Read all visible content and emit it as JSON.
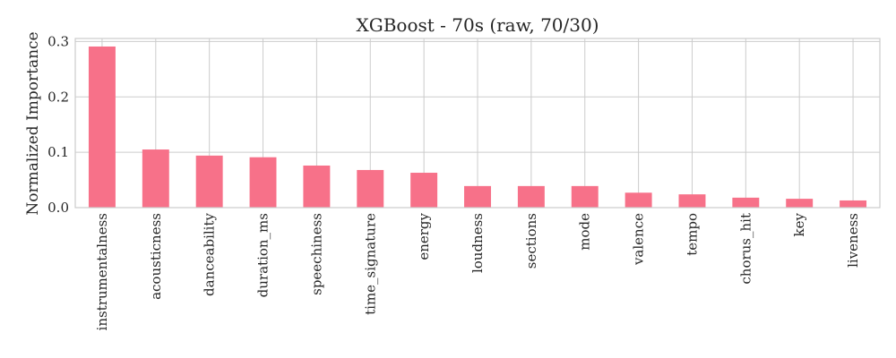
{
  "chart_data": {
    "type": "bar",
    "title": "XGBoost - 70s (raw, 70/30)",
    "xlabel": "",
    "ylabel": "Normalized Importance",
    "categories": [
      "instrumentalness",
      "acousticness",
      "danceability",
      "duration_ms",
      "speechiness",
      "time_signature",
      "energy",
      "loudness",
      "sections",
      "mode",
      "valence",
      "tempo",
      "chorus_hit",
      "key",
      "liveness"
    ],
    "values": [
      0.291,
      0.105,
      0.094,
      0.091,
      0.076,
      0.068,
      0.063,
      0.039,
      0.039,
      0.039,
      0.027,
      0.024,
      0.018,
      0.016,
      0.013
    ],
    "yticks": [
      "0.0",
      "0.1",
      "0.2",
      "0.3"
    ],
    "ytick_values": [
      0.0,
      0.1,
      0.2,
      0.3
    ],
    "ylim": [
      0,
      0.3055
    ],
    "grid": true,
    "bar_color": "#f77189"
  }
}
